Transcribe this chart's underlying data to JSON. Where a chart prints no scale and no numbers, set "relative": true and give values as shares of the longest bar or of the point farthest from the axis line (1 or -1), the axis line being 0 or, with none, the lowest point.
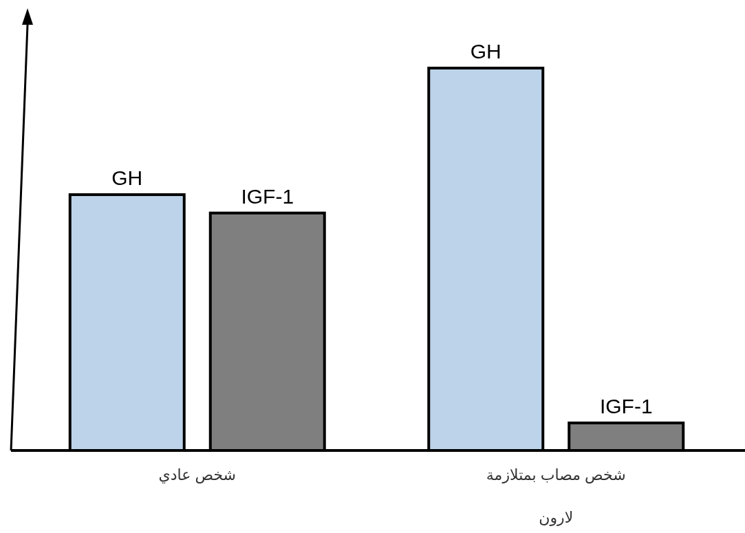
{
  "chart_data": {
    "type": "bar",
    "relative": true,
    "legend": false,
    "categories": [
      "شخص عادي",
      "شخص مصاب بمتلازمة لارون"
    ],
    "series": [
      {
        "name": "GH",
        "color": "#bcd3ea",
        "values": [
          0.669,
          1
        ]
      },
      {
        "name": "IGF-1",
        "color": "#7f7f7f",
        "values": [
          0.621,
          0.072
        ]
      }
    ]
  }
}
